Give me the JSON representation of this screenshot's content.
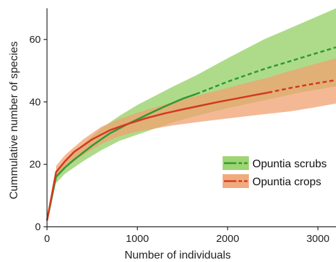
{
  "chart_data": {
    "type": "line",
    "title": "",
    "xlabel": "Number of individuals",
    "ylabel": "Cummulative number of species",
    "xlim": [
      0,
      3200
    ],
    "ylim": [
      0,
      70
    ],
    "xticks": [
      0,
      1000,
      2000,
      3000
    ],
    "xtick_labels": [
      "0",
      "1000",
      "2000",
      "3000"
    ],
    "yticks": [
      0,
      20,
      40,
      60
    ],
    "ytick_labels": [
      "0",
      "20",
      "40",
      "60"
    ],
    "grid": false,
    "legend_position": "right",
    "series": [
      {
        "name": "Opuntia scrubs",
        "color": "#2e9a35",
        "band_color": "#93cf63",
        "observed": {
          "x": [
            0,
            100,
            200,
            300,
            500,
            700,
            900,
            1100,
            1300,
            1500,
            1650
          ],
          "y": [
            2,
            16,
            19,
            21.5,
            26,
            30,
            33,
            35.8,
            38.5,
            41,
            42.5
          ]
        },
        "extrapolated": {
          "x": [
            1650,
            2000,
            2400,
            2800,
            3200
          ],
          "y": [
            42.5,
            46.5,
            50.5,
            54,
            57.5
          ]
        },
        "band": {
          "x": [
            100,
            200,
            400,
            600,
            800,
            1000,
            1200,
            1400,
            1650,
            2000,
            2400,
            2800,
            3200
          ],
          "lower": [
            14,
            17,
            21,
            24.5,
            27.5,
            29.5,
            31.5,
            33.5,
            35.5,
            38,
            40.5,
            43,
            45
          ],
          "upper": [
            18,
            21,
            26.5,
            31.5,
            35.5,
            39,
            42,
            45,
            48.5,
            54,
            60,
            65,
            70
          ]
        }
      },
      {
        "name": "Opuntia crops",
        "color": "#d33a1f",
        "band_color": "#f0a170",
        "observed": {
          "x": [
            0,
            100,
            200,
            300,
            500,
            700,
            900,
            1100,
            1300,
            1500,
            1700,
            1900,
            2100,
            2300,
            2450
          ],
          "y": [
            2,
            17.5,
            21,
            24,
            28,
            31,
            33,
            34.8,
            36.3,
            37.6,
            38.8,
            40,
            41.1,
            42.2,
            43
          ]
        },
        "extrapolated": {
          "x": [
            2450,
            2700,
            2950,
            3200
          ],
          "y": [
            43,
            44.5,
            45.8,
            47
          ]
        },
        "band": {
          "x": [
            100,
            200,
            400,
            600,
            800,
            1000,
            1200,
            1400,
            1600,
            1800,
            2000,
            2200,
            2450,
            2700,
            2950,
            3200
          ],
          "lower": [
            15.5,
            19,
            23,
            26.5,
            29,
            30.5,
            31.5,
            32.5,
            33.3,
            34,
            34.7,
            35.4,
            36.2,
            37,
            38.2,
            39.5
          ],
          "upper": [
            19.5,
            23,
            28,
            32,
            34.5,
            36.5,
            38.3,
            40,
            41.5,
            43,
            44.5,
            46,
            47.8,
            50,
            52,
            54
          ]
        }
      }
    ]
  }
}
